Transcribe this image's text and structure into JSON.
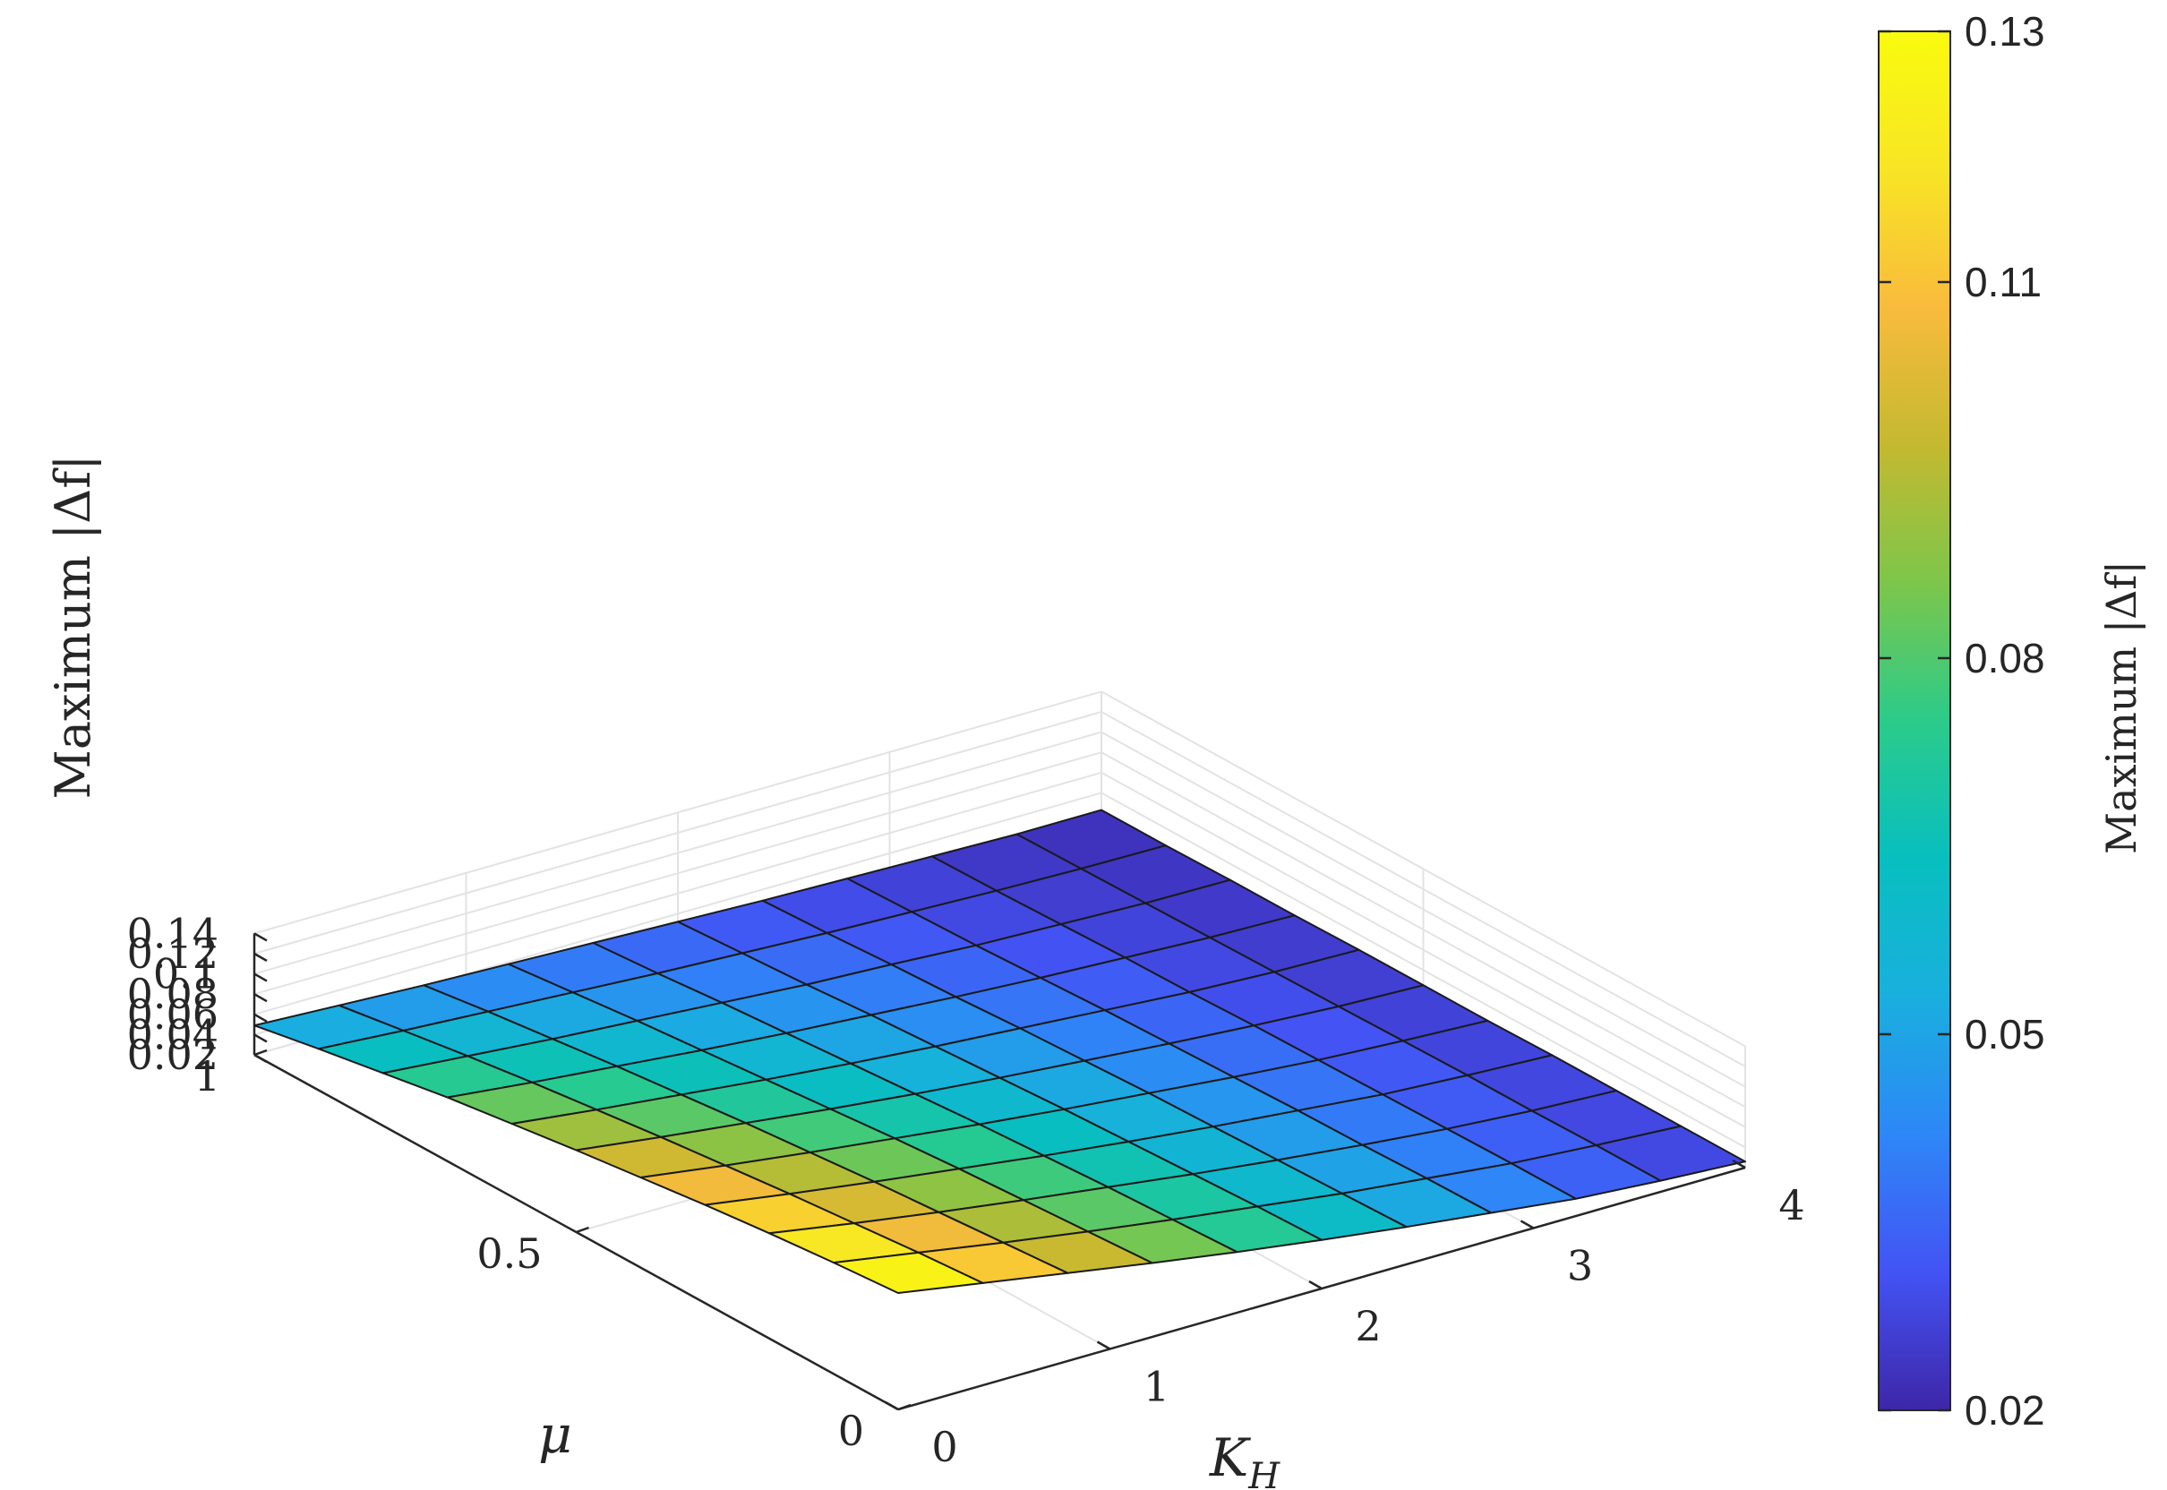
{
  "chart_data": {
    "type": "surface",
    "x_axis": {
      "label": "K",
      "label_subscript": "H",
      "range": [
        0,
        4
      ],
      "ticks": [
        "0",
        "1",
        "2",
        "3",
        "4"
      ]
    },
    "y_axis": {
      "label": "μ",
      "range": [
        0,
        1
      ],
      "ticks": [
        "0",
        "0.5",
        "1"
      ]
    },
    "z_axis": {
      "label": "Maximum |Δf|",
      "range": [
        0.02,
        0.14
      ],
      "ticks": [
        "0.02",
        "0.04",
        "0.06",
        "0.08",
        "0.1",
        "0.12",
        "0.14"
      ]
    },
    "colorbar": {
      "label": "Maximum |Δf|",
      "range": [
        0.02,
        0.13
      ],
      "ticks": [
        "0.02",
        "0.05",
        "0.08",
        "0.11",
        "0.13"
      ],
      "colormap": [
        "#3e26a8",
        "#4353f4",
        "#2e87f7",
        "#19afde",
        "#08bfbf",
        "#2bcb8a",
        "#7dc64b",
        "#c4b930",
        "#f9bb3d",
        "#f8e525",
        "#f9fb0e"
      ]
    },
    "grid": true,
    "legend": "colorbar-right",
    "surface": {
      "x": [
        0,
        0.4,
        0.8,
        1.2,
        1.6,
        2.0,
        2.4,
        2.8,
        3.2,
        3.6,
        4.0
      ],
      "y": [
        0,
        0.1,
        0.2,
        0.3,
        0.4,
        0.5,
        0.6,
        0.7,
        0.8,
        0.9,
        1.0
      ],
      "z_description": "z[i][j] for y[i], x[j]",
      "z": [
        [
          0.135,
          0.121,
          0.107,
          0.093,
          0.08,
          0.068,
          0.057,
          0.047,
          0.037,
          0.031,
          0.026
        ],
        [
          0.13,
          0.116,
          0.102,
          0.089,
          0.077,
          0.066,
          0.055,
          0.046,
          0.037,
          0.031,
          0.026
        ],
        [
          0.124,
          0.11,
          0.097,
          0.085,
          0.074,
          0.063,
          0.053,
          0.044,
          0.036,
          0.03,
          0.026
        ],
        [
          0.117,
          0.104,
          0.092,
          0.081,
          0.07,
          0.06,
          0.051,
          0.043,
          0.035,
          0.03,
          0.026
        ],
        [
          0.109,
          0.097,
          0.086,
          0.076,
          0.066,
          0.057,
          0.049,
          0.041,
          0.034,
          0.029,
          0.025
        ],
        [
          0.101,
          0.09,
          0.08,
          0.07,
          0.061,
          0.053,
          0.046,
          0.039,
          0.033,
          0.028,
          0.025
        ],
        [
          0.092,
          0.082,
          0.073,
          0.064,
          0.056,
          0.049,
          0.043,
          0.037,
          0.031,
          0.027,
          0.025
        ],
        [
          0.083,
          0.074,
          0.066,
          0.058,
          0.051,
          0.045,
          0.039,
          0.034,
          0.03,
          0.026,
          0.024
        ],
        [
          0.072,
          0.065,
          0.058,
          0.052,
          0.046,
          0.04,
          0.036,
          0.031,
          0.028,
          0.025,
          0.024
        ],
        [
          0.061,
          0.055,
          0.05,
          0.045,
          0.04,
          0.036,
          0.032,
          0.029,
          0.026,
          0.024,
          0.023
        ],
        [
          0.049,
          0.045,
          0.041,
          0.038,
          0.035,
          0.032,
          0.029,
          0.027,
          0.025,
          0.023,
          0.023
        ]
      ]
    }
  }
}
